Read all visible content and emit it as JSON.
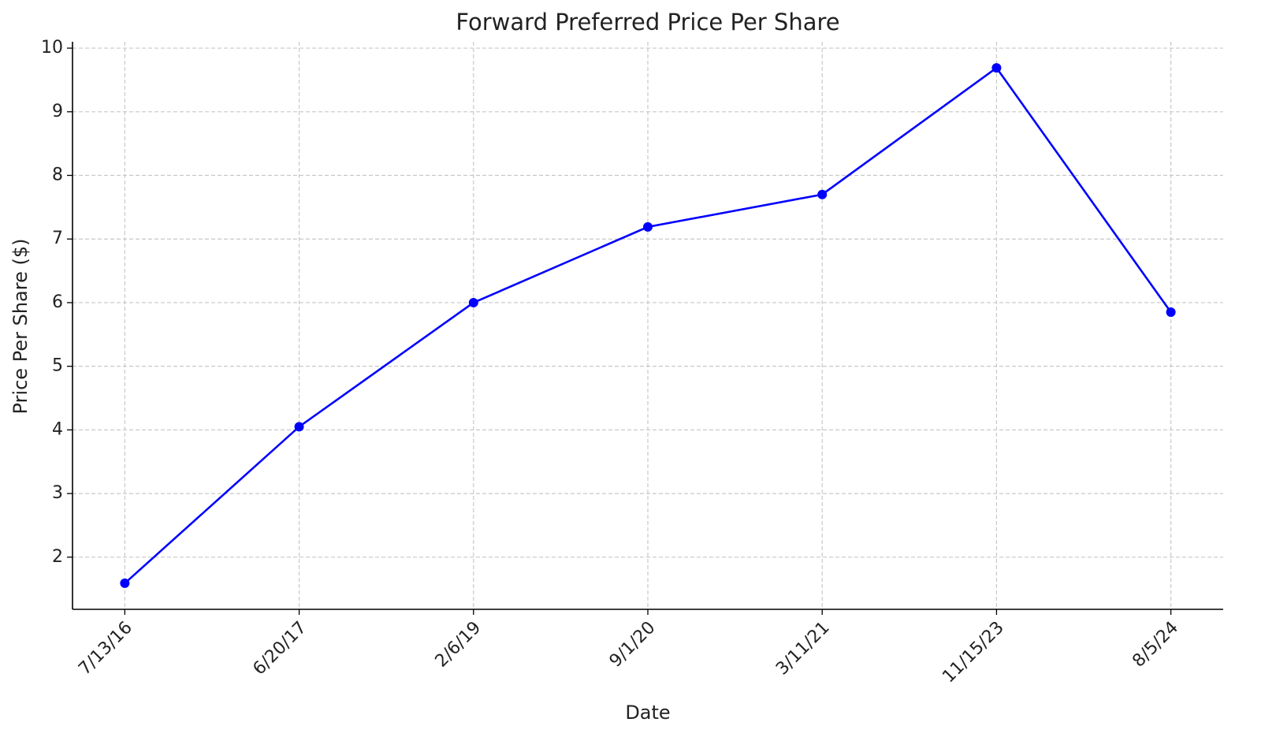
{
  "chart_data": {
    "type": "line",
    "title": "Forward Preferred Price Per Share",
    "xlabel": "Date",
    "ylabel": "Price Per Share ($)",
    "categories": [
      "7/13/16",
      "6/20/17",
      "2/6/19",
      "9/1/20",
      "3/11/21",
      "11/15/23",
      "8/5/24"
    ],
    "series": [
      {
        "name": "Forward Preferred Price Per Share",
        "color": "#0000ff",
        "values": [
          1.59,
          4.05,
          6.0,
          7.19,
          7.7,
          9.69,
          5.85
        ]
      }
    ],
    "ylim": [
      1.18,
      10.1
    ],
    "yticks": [
      2,
      3,
      4,
      5,
      6,
      7,
      8,
      9,
      10
    ],
    "grid": true
  }
}
